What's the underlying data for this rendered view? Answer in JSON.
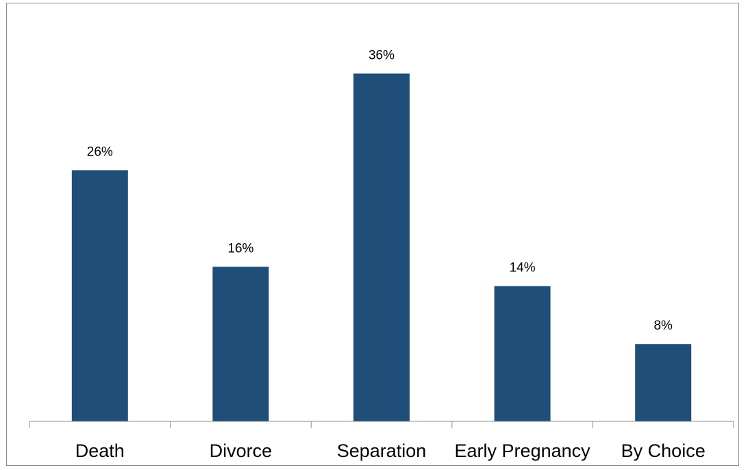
{
  "chart_data": {
    "type": "bar",
    "categories": [
      "Death",
      "Divorce",
      "Separation",
      "Early Pregnancy",
      "By Choice"
    ],
    "values": [
      26,
      16,
      36,
      14,
      8
    ],
    "data_labels": [
      "26%",
      "16%",
      "36%",
      "14%",
      "8%"
    ],
    "title": "",
    "xlabel": "",
    "ylabel": "",
    "ylim": [
      0,
      42
    ],
    "grid": false,
    "legend": "none",
    "bar_color": "#1f4e79"
  }
}
